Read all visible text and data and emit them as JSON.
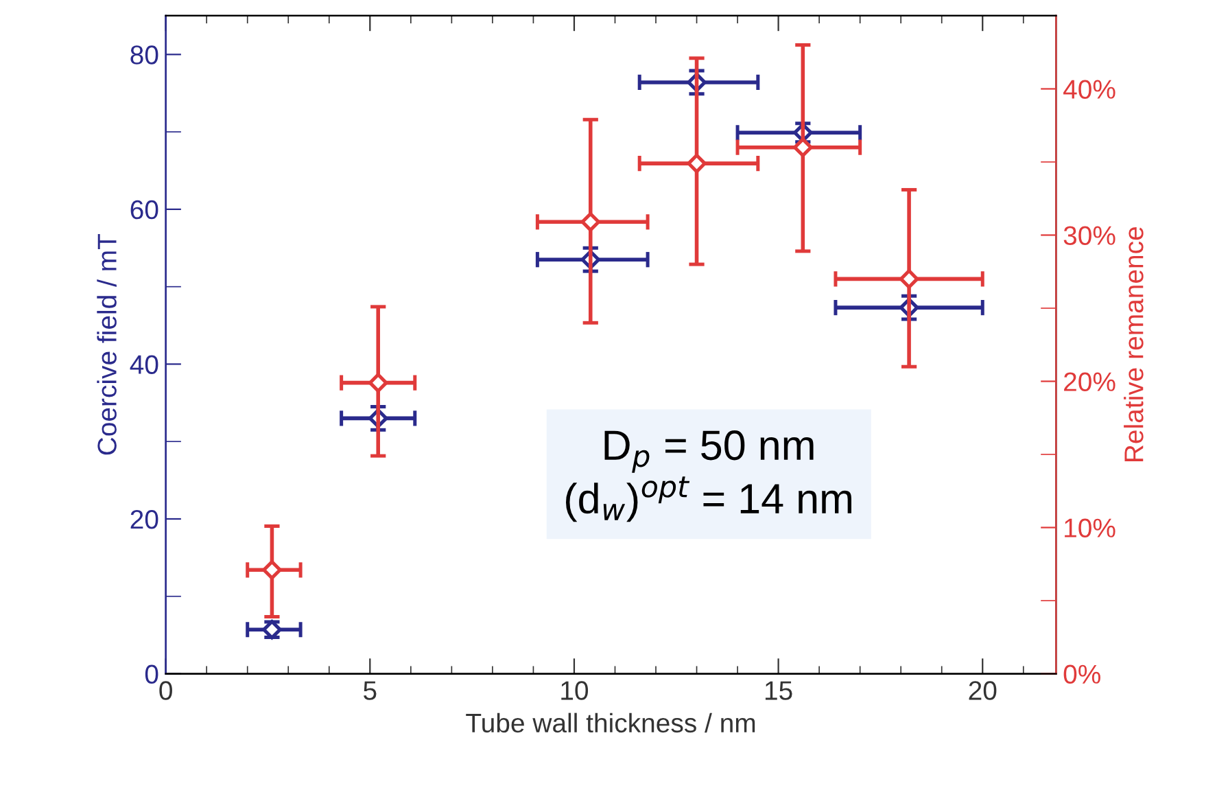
{
  "chart_data": {
    "type": "scatter",
    "xlabel": "Tube wall thickness / nm",
    "ylabel": "Coercive field / mT",
    "y2label": "Relative remanence",
    "x": [
      2.6,
      5.2,
      10.4,
      13.0,
      15.6,
      18.2
    ],
    "xlim": [
      0,
      21.8
    ],
    "ylim": [
      0,
      85
    ],
    "y2lim": [
      0,
      45
    ],
    "xticks": [
      0,
      {
        "value": 1,
        "label": null
      },
      {
        "value": 2,
        "label": null
      },
      {
        "value": 3,
        "label": null
      },
      {
        "value": 4,
        "label": null
      },
      5,
      {
        "value": 6,
        "label": null
      },
      {
        "value": 7,
        "label": null
      },
      {
        "value": 8,
        "label": null
      },
      {
        "value": 9,
        "label": null
      },
      10,
      {
        "value": 11,
        "label": null
      },
      {
        "value": 12,
        "label": null
      },
      {
        "value": 13,
        "label": null
      },
      {
        "value": 14,
        "label": null
      },
      15,
      {
        "value": 16,
        "label": null
      },
      {
        "value": 17,
        "label": null
      },
      {
        "value": 18,
        "label": null
      },
      {
        "value": 19,
        "label": null
      },
      20,
      {
        "value": 21,
        "label": null
      }
    ],
    "yticks": [
      0,
      {
        "value": 10,
        "label": null
      },
      20,
      {
        "value": 30,
        "label": null
      },
      40,
      {
        "value": 50,
        "label": null
      },
      60,
      {
        "value": 70,
        "label": null
      },
      80
    ],
    "y2ticks": [
      {
        "value": 0,
        "label": "0%"
      },
      {
        "value": 5,
        "label": null
      },
      {
        "value": 10,
        "label": "10%"
      },
      {
        "value": 15,
        "label": null
      },
      {
        "value": 20,
        "label": "20%"
      },
      {
        "value": 25,
        "label": null
      },
      {
        "value": 30,
        "label": "30%"
      },
      {
        "value": 35,
        "label": null
      },
      {
        "value": 40,
        "label": "40%"
      }
    ],
    "marker": "diamond",
    "grid": false,
    "legend": false,
    "series": [
      {
        "color": "#2a2a8c",
        "values": [
          5.7,
          33,
          53.5,
          76.4,
          69.9,
          47.3
        ],
        "errors": [
          1,
          1.5,
          1.5,
          1.5,
          1.2,
          1.5
        ],
        "xerrors": [
          [
            2.0,
            3.3
          ],
          [
            4.3,
            6.1
          ],
          [
            9.1,
            11.8
          ],
          [
            11.6,
            14.5
          ],
          [
            14.0,
            17.0
          ],
          [
            16.4,
            20.0
          ]
        ]
      },
      {
        "color": "#e03a3a",
        "axis": "y2",
        "values": [
          7.1,
          19.9,
          30.9,
          34.9,
          36.0,
          27.0
        ],
        "errors": [
          [
            3.9,
            10.1
          ],
          [
            14.9,
            25.1
          ],
          [
            24.0,
            37.9
          ],
          [
            28.0,
            42.1
          ],
          [
            28.9,
            43.0
          ],
          [
            21.0,
            33.1
          ]
        ],
        "xerrors": [
          [
            2.0,
            3.3
          ],
          [
            4.3,
            6.1
          ],
          [
            9.1,
            11.8
          ],
          [
            11.6,
            14.5
          ],
          [
            14.0,
            17.0
          ],
          [
            16.4,
            20.0
          ]
        ]
      }
    ],
    "annotations": [
      "D$_{p}$ = 50 nm\n(d$_{w}$)$^{opt}$ = 14 nm"
    ]
  }
}
